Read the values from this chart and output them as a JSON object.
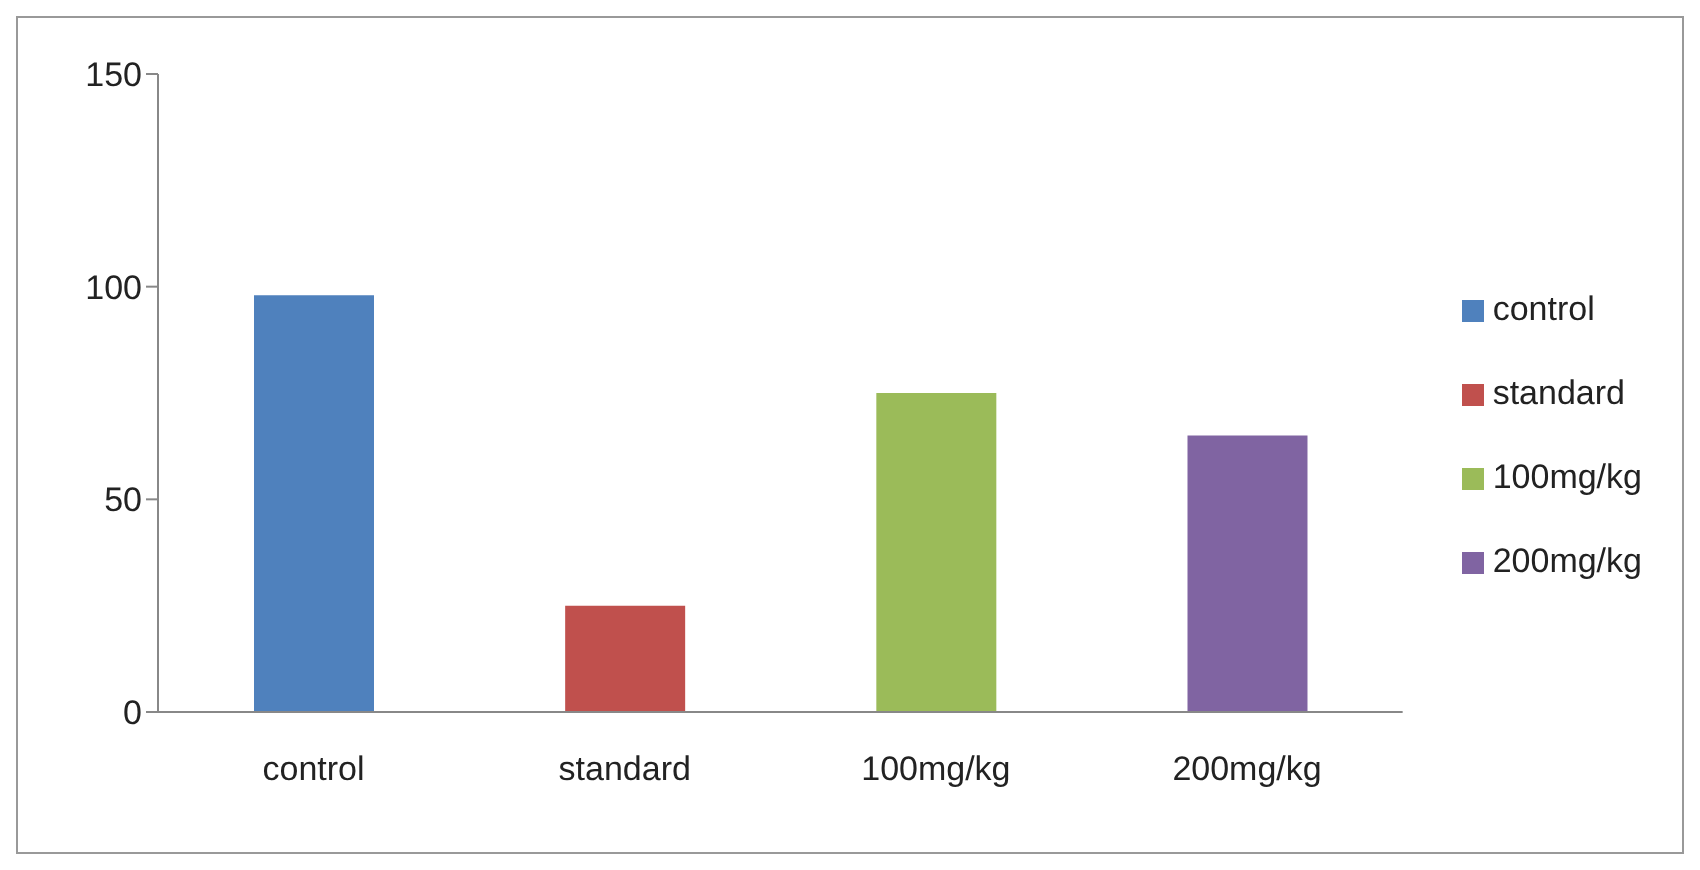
{
  "chart_data": {
    "type": "bar",
    "categories": [
      "control",
      "standard",
      "100mg/kg",
      "200mg/kg"
    ],
    "series": [
      {
        "name": "control",
        "color": "#4f81bd",
        "values": [
          98,
          null,
          null,
          null
        ]
      },
      {
        "name": "standard",
        "color": "#c0504d",
        "values": [
          null,
          25,
          null,
          null
        ]
      },
      {
        "name": "100mg/kg",
        "color": "#9bbb59",
        "values": [
          null,
          null,
          75,
          null
        ]
      },
      {
        "name": "200mg/kg",
        "color": "#8064a2",
        "values": [
          null,
          null,
          null,
          65
        ]
      }
    ],
    "stacked": true,
    "ylim": [
      0,
      150
    ],
    "yticks": [
      0,
      50,
      100,
      150
    ],
    "grid": false,
    "legend": "right"
  }
}
